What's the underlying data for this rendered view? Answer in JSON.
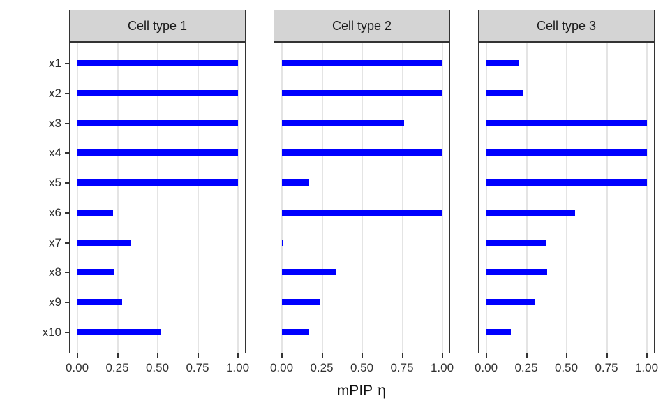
{
  "figure": {
    "xlabel_main": "mPIP",
    "xlabel_symbol": "η"
  },
  "chart_data": {
    "type": "bar",
    "orientation": "horizontal",
    "title": "",
    "xlabel": "mPIP η",
    "ylabel": "",
    "categories": [
      "x1",
      "x2",
      "x3",
      "x4",
      "x5",
      "x6",
      "x7",
      "x8",
      "x9",
      "x10"
    ],
    "x_tick_values": [
      0,
      0.25,
      0.5,
      0.75,
      1
    ],
    "x_tick_labels": [
      "0.00",
      "0.25",
      "0.50",
      "0.75",
      "1.00"
    ],
    "xlim": [
      0,
      1
    ],
    "grid": "vertical-major-only",
    "legend": "none",
    "facets": [
      {
        "label": "Cell type 1",
        "values": [
          1.0,
          1.0,
          1.0,
          1.0,
          1.0,
          0.22,
          0.33,
          0.23,
          0.28,
          0.52
        ]
      },
      {
        "label": "Cell type 2",
        "values": [
          1.0,
          1.0,
          0.76,
          1.0,
          0.17,
          1.0,
          0.01,
          0.34,
          0.24,
          0.17
        ]
      },
      {
        "label": "Cell type 3",
        "values": [
          0.2,
          0.23,
          1.0,
          1.0,
          1.0,
          0.55,
          0.37,
          0.38,
          0.3,
          0.15
        ]
      }
    ],
    "colors": {
      "bar": "#0000FF",
      "strip_bg": "#D4D4D4",
      "panel_border": "#333333",
      "gridline": "#E4E4E4",
      "tick": "#333333",
      "text": "#2B2B2B",
      "background": "#FFFFFF"
    }
  }
}
